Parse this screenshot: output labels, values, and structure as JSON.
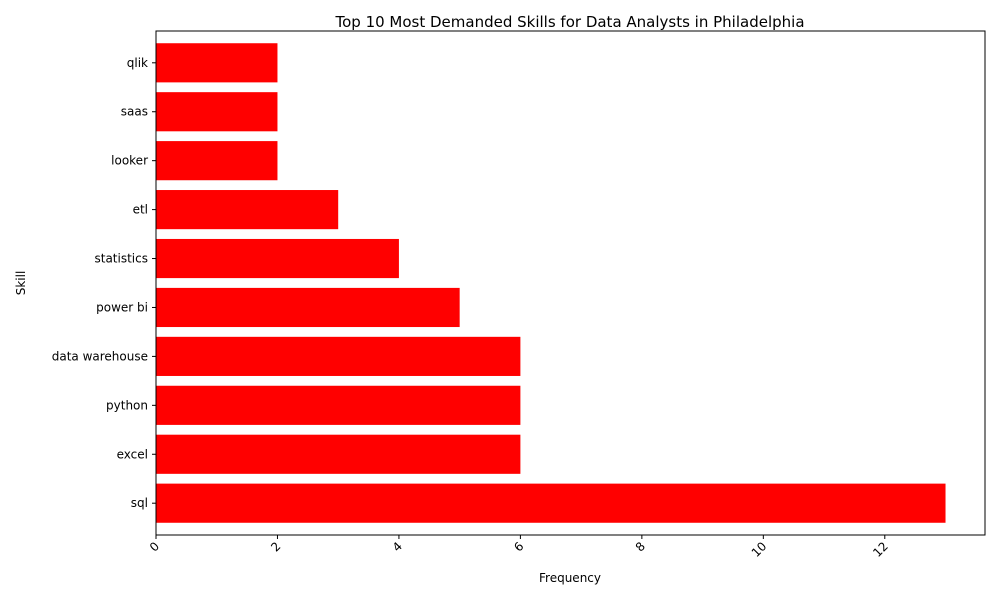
{
  "chart_data": {
    "type": "bar",
    "orientation": "horizontal",
    "title": "Top 10 Most Demanded Skills for Data Analysts in Philadelphia",
    "xlabel": "Frequency",
    "ylabel": "Skill",
    "categories": [
      "sql",
      "excel",
      "python",
      "data warehouse",
      "power bi",
      "statistics",
      "etl",
      "looker",
      "saas",
      "qlik"
    ],
    "values": [
      13,
      6,
      6,
      6,
      5,
      4,
      3,
      2,
      2,
      2
    ],
    "xticks": [
      "0",
      "2",
      "4",
      "6",
      "8",
      "10",
      "12"
    ],
    "xlim": [
      0,
      13.65
    ],
    "bar_color": "#ff0000",
    "grid": false,
    "legend": false
  }
}
